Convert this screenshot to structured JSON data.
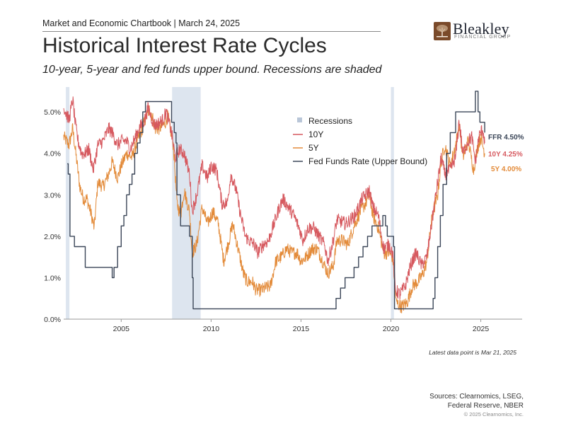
{
  "header": {
    "topline": "Market and Economic Chartbook | March 24, 2025",
    "brand_name": "Bleakley",
    "brand_sub": "FINANCIAL GROUP",
    "title": "Historical Interest Rate Cycles",
    "subtitle": "10-year, 5-year and fed funds upper bound. Recessions are shaded"
  },
  "footer": {
    "note": "Latest data point is Mar 21, 2025",
    "sources_line1": "Sources: Clearnomics, LSEG,",
    "sources_line2": "Federal Reserve, NBER",
    "copyright": "© 2025 Clearnomics, Inc."
  },
  "colors": {
    "ten_year": "#d6595f",
    "five_year": "#e38b3a",
    "fed_funds": "#3b4658",
    "recession": "#dde5ef",
    "axis": "#9a9a9a",
    "brand": "#7a4a2a"
  },
  "chart_data": {
    "type": "line",
    "title": "Historical Interest Rate Cycles",
    "xlim": [
      2001.8,
      2027.3
    ],
    "ylim": [
      0,
      5.6
    ],
    "x_ticks": [
      2005,
      2010,
      2015,
      2020,
      2025
    ],
    "x_tick_labels": [
      "2005",
      "2010",
      "2015",
      "2020",
      "2025"
    ],
    "y_ticks": [
      0,
      1,
      2,
      3,
      4,
      5
    ],
    "y_tick_labels": [
      "0.0%",
      "1.0%",
      "2.0%",
      "3.0%",
      "4.0%",
      "5.0%"
    ],
    "grid": false,
    "legend": {
      "placement": "top-center",
      "items": [
        "Recessions",
        "10Y",
        "5Y",
        "Fed Funds Rate (Upper Bound)"
      ]
    },
    "recessions": [
      {
        "start": 2001.92,
        "end": 2002.12
      },
      {
        "start": 2007.83,
        "end": 2009.42
      },
      {
        "start": 2020.0,
        "end": 2020.17
      }
    ],
    "end_labels": [
      "FFR 4.50%",
      "10Y 4.25%",
      "5Y 4.00%"
    ],
    "series": [
      {
        "name": "Fed Funds Rate (Upper Bound)",
        "step": true,
        "x": [
          2002.0,
          2002.05,
          2002.15,
          2002.3,
          2002.4,
          2002.9,
          2003.0,
          2003.5,
          2004.5,
          2004.6,
          2004.8,
          2005.0,
          2005.15,
          2005.3,
          2005.45,
          2005.6,
          2005.75,
          2005.9,
          2006.05,
          2006.2,
          2006.35,
          2006.5,
          2007.7,
          2007.8,
          2007.95,
          2008.05,
          2008.1,
          2008.3,
          2008.8,
          2008.95,
          2009.0,
          2015.95,
          2016.95,
          2017.2,
          2017.45,
          2017.95,
          2018.2,
          2018.45,
          2018.7,
          2018.95,
          2019.55,
          2019.7,
          2019.8,
          2020.15,
          2020.2,
          2022.2,
          2022.35,
          2022.45,
          2022.6,
          2022.75,
          2022.9,
          2023.1,
          2023.3,
          2023.6,
          2024.7,
          2024.85,
          2024.95,
          2025.22
        ],
        "values": [
          3.75,
          3.5,
          2.0,
          2.0,
          1.75,
          1.75,
          1.25,
          1.25,
          1.0,
          1.25,
          1.75,
          2.25,
          2.5,
          3.0,
          3.25,
          3.5,
          4.0,
          4.25,
          4.5,
          5.0,
          5.25,
          5.25,
          5.25,
          4.75,
          4.5,
          4.25,
          3.0,
          2.25,
          2.0,
          1.0,
          0.25,
          0.25,
          0.5,
          0.75,
          1.0,
          1.25,
          1.5,
          1.75,
          2.0,
          2.25,
          2.5,
          2.25,
          2.0,
          1.75,
          0.25,
          0.25,
          0.5,
          1.0,
          1.75,
          2.5,
          3.25,
          4.0,
          4.5,
          5.0,
          5.5,
          5.0,
          4.75,
          4.5
        ]
      },
      {
        "name": "10Y",
        "x": [
          2001.8,
          2002.1,
          2002.3,
          2002.45,
          2002.6,
          2002.8,
          2003.0,
          2003.2,
          2003.45,
          2003.7,
          2004.0,
          2004.3,
          2004.5,
          2004.8,
          2005.0,
          2005.3,
          2005.5,
          2005.8,
          2006.0,
          2006.3,
          2006.5,
          2006.8,
          2007.0,
          2007.3,
          2007.5,
          2007.8,
          2008.0,
          2008.25,
          2008.5,
          2008.8,
          2008.95,
          2009.2,
          2009.5,
          2009.8,
          2010.0,
          2010.3,
          2010.6,
          2010.9,
          2011.1,
          2011.4,
          2011.6,
          2011.9,
          2012.1,
          2012.4,
          2012.6,
          2012.9,
          2013.2,
          2013.5,
          2013.8,
          2014.0,
          2014.3,
          2014.6,
          2014.9,
          2015.1,
          2015.4,
          2015.7,
          2016.0,
          2016.3,
          2016.5,
          2016.8,
          2017.0,
          2017.5,
          2018.0,
          2018.4,
          2018.8,
          2019.0,
          2019.3,
          2019.6,
          2019.9,
          2020.1,
          2020.25,
          2020.5,
          2020.8,
          2021.1,
          2021.4,
          2021.7,
          2022.0,
          2022.3,
          2022.5,
          2022.8,
          2023.0,
          2023.3,
          2023.6,
          2023.8,
          2024.0,
          2024.3,
          2024.5,
          2024.7,
          2024.9,
          2025.1,
          2025.22
        ],
        "values": [
          5.1,
          4.8,
          5.3,
          4.7,
          4.3,
          4.0,
          4.0,
          4.1,
          3.6,
          4.2,
          4.3,
          4.6,
          4.5,
          4.2,
          4.3,
          4.3,
          4.1,
          4.4,
          4.6,
          4.8,
          5.1,
          4.7,
          4.7,
          4.8,
          5.0,
          4.5,
          3.9,
          4.1,
          4.0,
          3.5,
          2.6,
          3.0,
          3.7,
          3.4,
          3.7,
          3.6,
          2.8,
          2.8,
          3.5,
          3.1,
          2.6,
          2.0,
          1.9,
          1.8,
          1.6,
          1.8,
          1.9,
          2.3,
          2.7,
          2.9,
          2.7,
          2.5,
          2.2,
          1.9,
          2.2,
          2.2,
          2.0,
          1.8,
          1.4,
          1.9,
          2.4,
          2.3,
          2.5,
          2.9,
          3.1,
          2.7,
          2.5,
          1.7,
          1.8,
          1.6,
          0.7,
          0.6,
          0.8,
          1.3,
          1.6,
          1.3,
          1.5,
          2.4,
          3.0,
          3.9,
          3.5,
          3.6,
          3.9,
          4.8,
          4.0,
          4.3,
          4.4,
          3.8,
          4.4,
          4.6,
          4.25
        ]
      },
      {
        "name": "5Y",
        "x": [
          2001.8,
          2002.1,
          2002.3,
          2002.5,
          2002.7,
          2002.9,
          2003.1,
          2003.35,
          2003.5,
          2003.7,
          2004.0,
          2004.3,
          2004.5,
          2004.8,
          2005.0,
          2005.3,
          2005.6,
          2005.9,
          2006.1,
          2006.4,
          2006.6,
          2006.9,
          2007.1,
          2007.4,
          2007.6,
          2007.9,
          2008.1,
          2008.3,
          2008.5,
          2008.8,
          2008.95,
          2009.2,
          2009.5,
          2009.8,
          2010.1,
          2010.4,
          2010.7,
          2011.0,
          2011.2,
          2011.5,
          2011.8,
          2012.0,
          2012.3,
          2012.5,
          2012.8,
          2013.0,
          2013.3,
          2013.6,
          2013.9,
          2014.2,
          2014.5,
          2014.8,
          2015.0,
          2015.3,
          2015.6,
          2015.9,
          2016.2,
          2016.5,
          2016.8,
          2017.0,
          2017.3,
          2017.6,
          2018.0,
          2018.3,
          2018.6,
          2018.8,
          2019.0,
          2019.3,
          2019.6,
          2019.9,
          2020.1,
          2020.3,
          2020.6,
          2020.9,
          2021.2,
          2021.5,
          2021.8,
          2022.0,
          2022.3,
          2022.6,
          2022.8,
          2023.0,
          2023.3,
          2023.6,
          2023.8,
          2024.0,
          2024.3,
          2024.6,
          2024.8,
          2025.0,
          2025.22
        ],
        "values": [
          4.4,
          4.2,
          4.6,
          3.9,
          3.2,
          2.9,
          2.9,
          2.5,
          2.2,
          3.3,
          3.2,
          3.5,
          3.8,
          3.4,
          3.7,
          4.0,
          3.9,
          4.3,
          4.5,
          4.9,
          5.1,
          4.6,
          4.6,
          4.7,
          4.9,
          4.2,
          2.8,
          2.5,
          3.1,
          2.6,
          1.6,
          1.8,
          2.7,
          2.3,
          2.6,
          2.3,
          1.4,
          1.9,
          2.3,
          1.7,
          1.1,
          0.9,
          0.9,
          0.7,
          0.7,
          0.75,
          0.8,
          1.4,
          1.5,
          1.7,
          1.6,
          1.6,
          1.4,
          1.5,
          1.7,
          1.7,
          1.4,
          1.1,
          1.3,
          1.9,
          1.9,
          1.8,
          2.3,
          2.6,
          2.8,
          3.0,
          2.5,
          2.2,
          1.6,
          1.6,
          1.5,
          0.4,
          0.3,
          0.4,
          0.8,
          0.9,
          1.1,
          1.4,
          2.5,
          3.0,
          3.8,
          4.2,
          3.7,
          4.2,
          4.7,
          3.9,
          4.3,
          3.6,
          4.1,
          4.4,
          4.0
        ]
      }
    ]
  }
}
